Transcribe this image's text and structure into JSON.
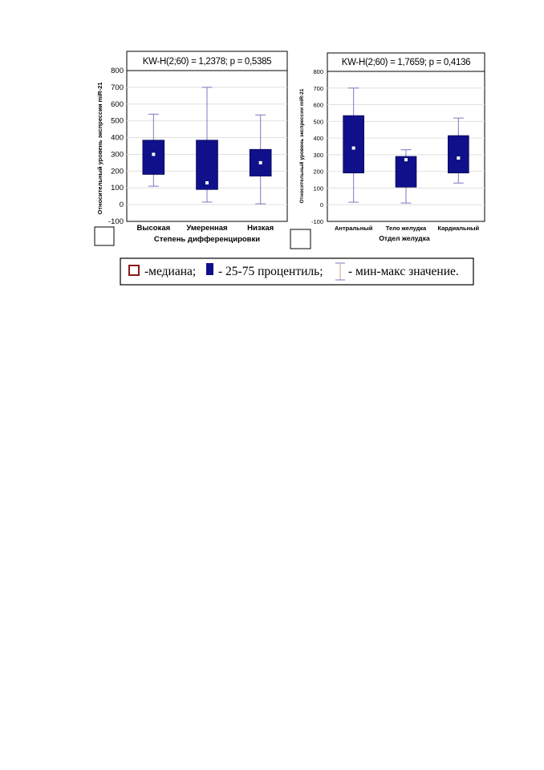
{
  "colors": {
    "box_fill": "#10108a",
    "whisker": "#7a7ac0",
    "median_marker": "#ffffff",
    "grid": "#e0e0e0",
    "legend_median_border": "#8b1a1a"
  },
  "chart_data": [
    {
      "type": "box",
      "title": "KW-H(2;60) = 1,2378; p = 0,5385",
      "xlabel": "Степень дифференцировки",
      "ylabel": "Относительный уровень экспрессии miR-21",
      "ylim": [
        -100,
        800
      ],
      "yticks": [
        "-100",
        "0",
        "100",
        "200",
        "300",
        "400",
        "500",
        "600",
        "700",
        "800"
      ],
      "grid": true,
      "categories": [
        "Высокая",
        "Умеренная",
        "Низкая"
      ],
      "boxes": [
        {
          "min": 110,
          "q1": 180,
          "median": 300,
          "q3": 385,
          "max": 540
        },
        {
          "min": 15,
          "q1": 90,
          "median": 130,
          "q3": 385,
          "max": 700
        },
        {
          "min": 5,
          "q1": 170,
          "median": 250,
          "q3": 330,
          "max": 535
        }
      ]
    },
    {
      "type": "box",
      "title": "KW-H(2;60) = 1,7659; p = 0,4136",
      "xlabel": "Отдел желудка",
      "ylabel": "Относительный уровень экспрессии miR-21",
      "ylim": [
        -100,
        800
      ],
      "yticks": [
        "-100",
        "0",
        "100",
        "200",
        "300",
        "400",
        "500",
        "600",
        "700",
        "800"
      ],
      "grid": true,
      "categories": [
        "Антральный",
        "Тело желудка",
        "Кардиальный"
      ],
      "boxes": [
        {
          "min": 15,
          "q1": 190,
          "median": 340,
          "q3": 535,
          "max": 700
        },
        {
          "min": 10,
          "q1": 105,
          "median": 270,
          "q3": 290,
          "max": 330
        },
        {
          "min": 130,
          "q1": 190,
          "median": 280,
          "q3": 415,
          "max": 520
        }
      ]
    }
  ],
  "legend": {
    "median_label": "-медиана;",
    "iqr_label": "- 25-75 процентиль;",
    "minmax_label": "- мин-макс значение."
  }
}
